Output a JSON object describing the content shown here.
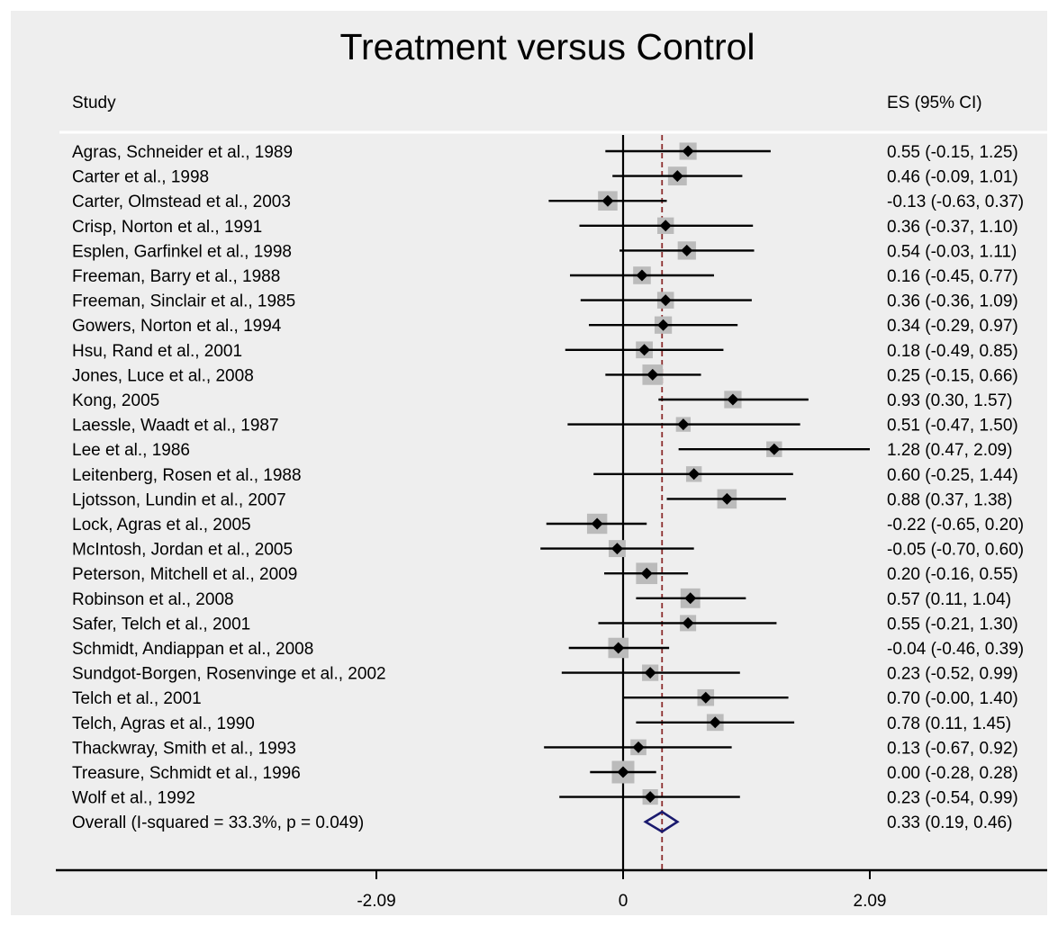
{
  "chart_data": {
    "type": "forest",
    "title": "Treatment versus Control",
    "column_headers": {
      "study": "Study",
      "effect": "ES (95% CI)"
    },
    "xlim": [
      -2.09,
      2.09
    ],
    "xticks": [
      -2.09,
      0,
      2.09
    ],
    "xtick_labels": [
      "-2.09",
      "0",
      "2.09"
    ],
    "reference_line": 0,
    "overall_line": 0.33,
    "studies": [
      {
        "study": "Agras, Schneider et al., 1989",
        "es": 0.55,
        "lo": -0.15,
        "hi": 1.25,
        "label": "0.55 (-0.15, 1.25)",
        "weight": 3.2
      },
      {
        "study": "Carter et al., 1998",
        "es": 0.46,
        "lo": -0.09,
        "hi": 1.01,
        "label": "0.46 (-0.09, 1.01)",
        "weight": 4.3
      },
      {
        "study": "Carter, Olmstead et al., 2003",
        "es": -0.13,
        "lo": -0.63,
        "hi": 0.37,
        "label": "-0.13 (-0.63, 0.37)",
        "weight": 4.8
      },
      {
        "study": "Crisp, Norton et al., 1991",
        "es": 0.36,
        "lo": -0.37,
        "hi": 1.1,
        "label": "0.36 (-0.37, 1.10)",
        "weight": 2.8
      },
      {
        "study": "Esplen, Garfinkel et al., 1998",
        "es": 0.54,
        "lo": -0.03,
        "hi": 1.11,
        "label": "0.54 (-0.03, 1.11)",
        "weight": 3.9
      },
      {
        "study": "Freeman, Barry et al., 1988",
        "es": 0.16,
        "lo": -0.45,
        "hi": 0.77,
        "label": "0.16 (-0.45, 0.77)",
        "weight": 3.5
      },
      {
        "study": "Freeman, Sinclair et al., 1985",
        "es": 0.36,
        "lo": -0.36,
        "hi": 1.09,
        "label": "0.36 (-0.36, 1.09)",
        "weight": 2.9
      },
      {
        "study": "Gowers, Norton et al., 1994",
        "es": 0.34,
        "lo": -0.29,
        "hi": 0.97,
        "label": "0.34 (-0.29, 0.97)",
        "weight": 3.3
      },
      {
        "study": "Hsu, Rand et al., 2001",
        "es": 0.18,
        "lo": -0.49,
        "hi": 0.85,
        "label": "0.18 (-0.49, 0.85)",
        "weight": 3.0
      },
      {
        "study": "Jones, Luce et al., 2008",
        "es": 0.25,
        "lo": -0.15,
        "hi": 0.66,
        "label": "0.25 (-0.15, 0.66)",
        "weight": 5.6
      },
      {
        "study": "Kong, 2005",
        "es": 0.93,
        "lo": 0.3,
        "hi": 1.57,
        "label": "0.93 (0.30, 1.57)",
        "weight": 3.3
      },
      {
        "study": "Laessle, Waadt et al., 1987",
        "es": 0.51,
        "lo": -0.47,
        "hi": 1.5,
        "label": "0.51 (-0.47, 1.50)",
        "weight": 1.8
      },
      {
        "study": "Lee et al., 1986",
        "es": 1.28,
        "lo": 0.47,
        "hi": 2.09,
        "label": "1.28 (0.47, 2.09)",
        "weight": 2.3
      },
      {
        "study": "Leitenberg, Rosen et al., 1988",
        "es": 0.6,
        "lo": -0.25,
        "hi": 1.44,
        "label": "0.60 (-0.25, 1.44)",
        "weight": 2.3
      },
      {
        "study": "Ljotsson, Lundin et al., 2007",
        "es": 0.88,
        "lo": 0.37,
        "hi": 1.38,
        "label": "0.88 (0.37, 1.38)",
        "weight": 4.8
      },
      {
        "study": "Lock, Agras et al., 2005",
        "es": -0.22,
        "lo": -0.65,
        "hi": 0.2,
        "label": "-0.22 (-0.65, 0.20)",
        "weight": 5.4
      },
      {
        "study": "McIntosh, Jordan et al., 2005",
        "es": -0.05,
        "lo": -0.7,
        "hi": 0.6,
        "label": "-0.05 (-0.70, 0.60)",
        "weight": 3.1
      },
      {
        "study": "Peterson, Mitchell et al., 2009",
        "es": 0.2,
        "lo": -0.16,
        "hi": 0.55,
        "label": "0.20 (-0.16, 0.55)",
        "weight": 6.4
      },
      {
        "study": "Robinson et al., 2008",
        "es": 0.57,
        "lo": 0.11,
        "hi": 1.04,
        "label": "0.57 (0.11, 1.04)",
        "weight": 5.0
      },
      {
        "study": "Safer, Telch et al., 2001",
        "es": 0.55,
        "lo": -0.21,
        "hi": 1.3,
        "label": "0.55 (-0.21, 1.30)",
        "weight": 2.6
      },
      {
        "study": "Schmidt, Andiappan et al., 2008",
        "es": -0.04,
        "lo": -0.46,
        "hi": 0.39,
        "label": "-0.04 (-0.46, 0.39)",
        "weight": 5.5
      },
      {
        "study": "Sundgot-Borgen, Rosenvinge et al., 2002",
        "es": 0.23,
        "lo": -0.52,
        "hi": 0.99,
        "label": "0.23 (-0.52, 0.99)",
        "weight": 2.7
      },
      {
        "study": "Telch et al., 2001",
        "es": 0.7,
        "lo": -0.0,
        "hi": 1.4,
        "label": "0.70 (-0.00, 1.40)",
        "weight": 2.9
      },
      {
        "study": "Telch, Agras et al., 1990",
        "es": 0.78,
        "lo": 0.11,
        "hi": 1.45,
        "label": "0.78 (0.11, 1.45)",
        "weight": 3.0
      },
      {
        "study": "Thackwray, Smith et al., 1993",
        "es": 0.13,
        "lo": -0.67,
        "hi": 0.92,
        "label": "0.13 (-0.67, 0.92)",
        "weight": 2.4
      },
      {
        "study": "Treasure, Schmidt et al., 1996",
        "es": 0.0,
        "lo": -0.28,
        "hi": 0.28,
        "label": "0.00 (-0.28, 0.28)",
        "weight": 7.5
      },
      {
        "study": "Wolf et al., 1992",
        "es": 0.23,
        "lo": -0.54,
        "hi": 0.99,
        "label": "0.23 (-0.54, 0.99)",
        "weight": 2.2
      }
    ],
    "overall": {
      "study": "Overall  (I-squared = 33.3%, p = 0.049)",
      "es": 0.33,
      "lo": 0.19,
      "hi": 0.46,
      "label": "0.33 (0.19, 0.46)"
    },
    "colors": {
      "background": "#ffffff",
      "panel": "#eeeeee",
      "ci_line": "#000000",
      "point": "#000000",
      "weight_box": "#bbbbbb",
      "overall_diamond": "#1a1a6e",
      "overall_line": "#8b2c2c",
      "axis": "#000000"
    }
  }
}
